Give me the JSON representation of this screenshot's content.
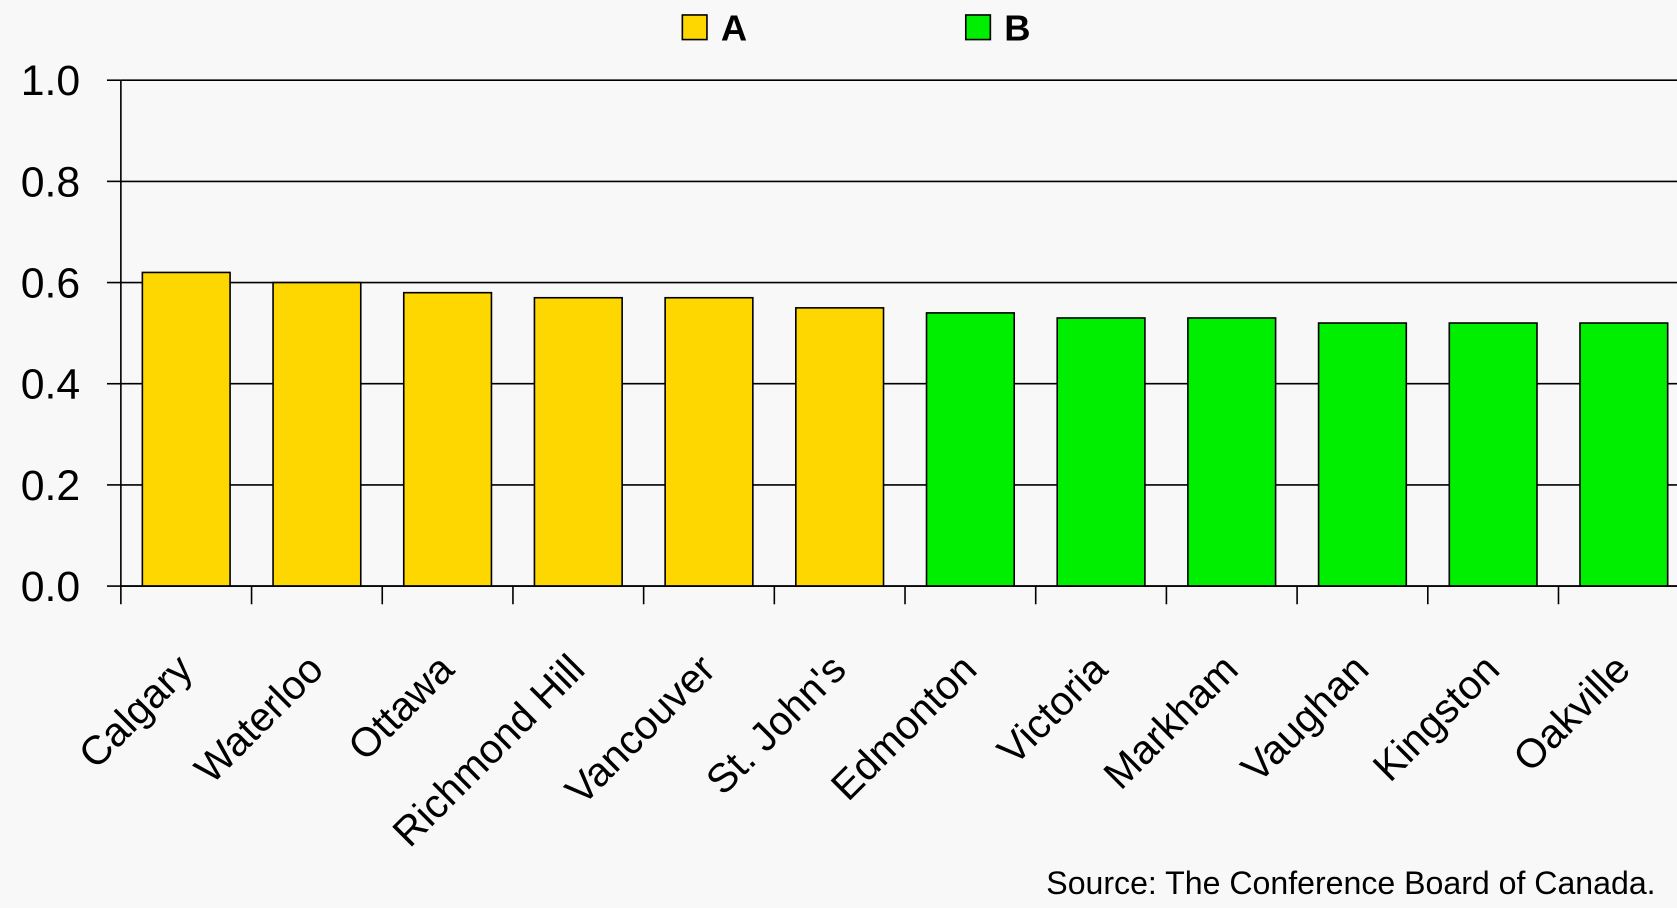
{
  "chart_data": {
    "type": "bar",
    "categories": [
      "Calgary",
      "Waterloo",
      "Ottawa",
      "Richmond Hill",
      "Vancouver",
      "St. John's",
      "Edmonton",
      "Victoria",
      "Markham",
      "Vaughan",
      "Kingston",
      "Oakville"
    ],
    "series": [
      {
        "name": "A",
        "color": "#FFD700",
        "values": [
          0.62,
          0.6,
          0.58,
          0.57,
          0.57,
          0.55,
          null,
          null,
          null,
          null,
          null,
          null
        ]
      },
      {
        "name": "B",
        "color": "#00EE00",
        "values": [
          null,
          null,
          null,
          null,
          null,
          null,
          0.54,
          0.53,
          0.53,
          0.52,
          0.52,
          0.52
        ]
      }
    ],
    "ylim": [
      0,
      1
    ],
    "yticks": [
      {
        "value": 0,
        "label": "0.0"
      },
      0.2,
      0.4,
      0.6,
      0.8,
      {
        "value": 1,
        "label": "1.0"
      }
    ],
    "grid": true,
    "legend": "top",
    "source": "Source: The Conference Board of Canada."
  }
}
